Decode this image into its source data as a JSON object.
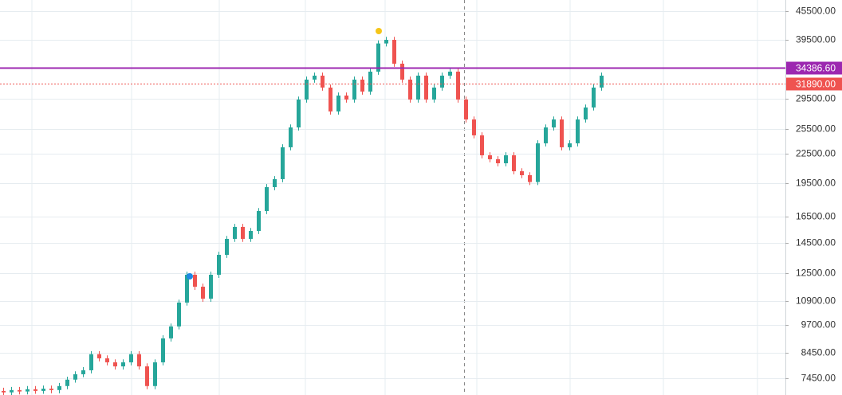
{
  "chart_data": {
    "type": "candlestick",
    "log_scale": true,
    "grid": true,
    "up_color": "#26a69a",
    "down_color": "#ef5350",
    "open": [
      7000,
      6950,
      7030,
      6980,
      7060,
      7000,
      7080,
      7030,
      7170,
      7400,
      7600,
      7750,
      8390,
      8220,
      8060,
      7900,
      8060,
      8390,
      7900,
      7170,
      8060,
      9070,
      9620,
      10820,
      12410,
      11700,
      11030,
      12410,
      13690,
      14810,
      15710,
      14810,
      15400,
      16990,
      19110,
      19880,
      23260,
      25650,
      29430,
      32470,
      33110,
      31220,
      27750,
      30020,
      29430,
      32470,
      30610,
      33770,
      38800,
      39500,
      35120,
      32470,
      29430,
      33110,
      29430,
      31220,
      33110,
      33770,
      29430,
      26680,
      24670,
      22360,
      21930,
      21500,
      22360,
      20670,
      20270,
      19600,
      23720,
      25650,
      26680,
      23260,
      23720,
      26680,
      28300,
      31220
    ],
    "high": [
      7110,
      7140,
      7140,
      7170,
      7170,
      7190,
      7190,
      7280,
      7510,
      7710,
      7870,
      8520,
      8520,
      8340,
      8180,
      8180,
      8520,
      8520,
      8020,
      8180,
      9210,
      9760,
      10980,
      12600,
      12600,
      11880,
      12600,
      13900,
      15030,
      15950,
      15950,
      15630,
      17240,
      19400,
      20180,
      23610,
      26030,
      29870,
      32960,
      33610,
      33610,
      31690,
      30470,
      30470,
      32960,
      32960,
      34280,
      39380,
      40090,
      40090,
      35650,
      32960,
      33610,
      33610,
      31690,
      33610,
      34280,
      34280,
      29870,
      27080,
      25040,
      22700,
      22260,
      22700,
      22700,
      20980,
      20570,
      24080,
      26030,
      27080,
      27080,
      24080,
      27080,
      28720,
      31690,
      33610
    ],
    "low": [
      6850,
      6850,
      6880,
      6880,
      6900,
      6900,
      6920,
      6920,
      7060,
      7290,
      7490,
      7630,
      8100,
      7940,
      7780,
      7780,
      7940,
      7780,
      7060,
      7060,
      7940,
      8930,
      9480,
      10660,
      11520,
      10860,
      10860,
      12220,
      13480,
      14590,
      14590,
      14590,
      15170,
      16730,
      18820,
      19580,
      22910,
      25260,
      28990,
      31980,
      30750,
      27330,
      27330,
      28990,
      28990,
      30150,
      30150,
      33260,
      38220,
      34590,
      31980,
      28990,
      28990,
      28990,
      28990,
      30750,
      32610,
      28990,
      26280,
      24300,
      22020,
      21600,
      21180,
      21180,
      20360,
      19970,
      19310,
      19310,
      23360,
      25260,
      22910,
      22910,
      23360,
      26280,
      27880,
      30750
    ],
    "close": [
      6950,
      7030,
      6980,
      7060,
      7000,
      7080,
      7030,
      7170,
      7400,
      7600,
      7750,
      8390,
      8220,
      8060,
      7900,
      8060,
      8390,
      7900,
      7170,
      8060,
      9070,
      9620,
      10820,
      12410,
      11700,
      11030,
      12410,
      13690,
      14810,
      15710,
      14810,
      15400,
      16990,
      19110,
      19880,
      23260,
      25650,
      29430,
      32470,
      33110,
      31220,
      27750,
      30020,
      29430,
      32470,
      30610,
      33770,
      38800,
      39500,
      35120,
      32470,
      29430,
      33110,
      29430,
      31220,
      33110,
      33770,
      29430,
      26680,
      24670,
      22360,
      21930,
      21500,
      22360,
      20670,
      20270,
      19600,
      23720,
      25650,
      26680,
      23260,
      23720,
      26680,
      28300,
      31220,
      33110
    ],
    "ylim": [
      6861,
      48070
    ],
    "yticks": [
      {
        "value": 45500,
        "label": "45500.00"
      },
      {
        "value": 39500,
        "label": "39500.00"
      },
      {
        "value": 29500,
        "label": "29500.00"
      },
      {
        "value": 25500,
        "label": "25500.00"
      },
      {
        "value": 22500,
        "label": "22500.00"
      },
      {
        "value": 19500,
        "label": "19500.00"
      },
      {
        "value": 16500,
        "label": "16500.00"
      },
      {
        "value": 14500,
        "label": "14500.00"
      },
      {
        "value": 12500,
        "label": "12500.00"
      },
      {
        "value": 10900,
        "label": "10900.00"
      },
      {
        "value": 9700,
        "label": "9700.00"
      },
      {
        "value": 8450,
        "label": "8450.00"
      },
      {
        "value": 7450,
        "label": "7450.00"
      }
    ],
    "price_lines": [
      {
        "value": 34386.6,
        "label": "34386.60",
        "color": "#9c27b0"
      },
      {
        "value": 31890,
        "label": "31890.00",
        "color": "#ef5350"
      }
    ]
  }
}
